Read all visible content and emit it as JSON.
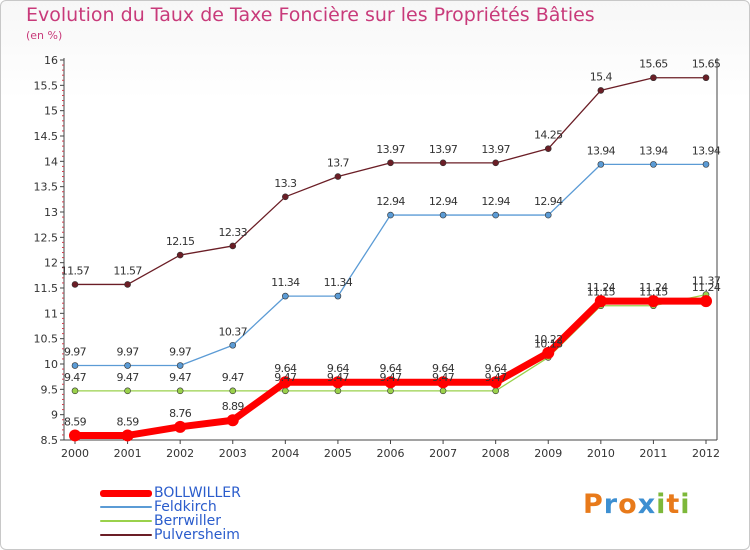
{
  "header": {
    "title": "Evolution du Taux de Taxe Foncière sur les Propriétés Bâties",
    "unit": "(en %)"
  },
  "logo": {
    "text": "Proxiti",
    "letters": [
      "P",
      "r",
      "o",
      "x",
      "i",
      "t",
      "i"
    ],
    "colors": [
      "#e87a1a",
      "#3d8fd1",
      "#e87a1a",
      "#3d8fd1",
      "#7db83a",
      "#e87a1a",
      "#7db83a"
    ]
  },
  "chart_data": {
    "type": "line",
    "x": [
      "2000",
      "2001",
      "2002",
      "2003",
      "2004",
      "2005",
      "2006",
      "2007",
      "2008",
      "2009",
      "2010",
      "2011",
      "2012"
    ],
    "ylim": [
      8.5,
      16
    ],
    "yticks": [
      "8.5",
      "9",
      "9.5",
      "10",
      "10.5",
      "11",
      "11.5",
      "12",
      "12.5",
      "13",
      "13.5",
      "14",
      "14.5",
      "15",
      "15.5",
      "16"
    ],
    "grid": false,
    "legend_position": "bottom-left",
    "series": [
      {
        "name": "Pulversheim",
        "color": "#6b1e26",
        "values": [
          11.57,
          11.57,
          12.15,
          12.33,
          13.3,
          13.7,
          13.97,
          13.97,
          13.97,
          14.25,
          15.4,
          15.65,
          15.65
        ],
        "labels": [
          "11.57",
          "11.57",
          "12.15",
          "12.33",
          "13.3",
          "13.7",
          "13.97",
          "13.97",
          "13.97",
          "14.25",
          "15.4",
          "15.65",
          "15.65"
        ]
      },
      {
        "name": "Feldkirch",
        "color": "#5b9bd5",
        "values": [
          9.97,
          9.97,
          9.97,
          10.37,
          11.34,
          11.34,
          12.94,
          12.94,
          12.94,
          12.94,
          13.94,
          13.94,
          13.94
        ],
        "labels": [
          "9.97",
          "9.97",
          "9.97",
          "10.37",
          "11.34",
          "11.34",
          "12.94",
          "12.94",
          "12.94",
          "12.94",
          "13.94",
          "13.94",
          "13.94"
        ]
      },
      {
        "name": "Berrwiller",
        "color": "#9ad14b",
        "values": [
          9.47,
          9.47,
          9.47,
          9.47,
          9.47,
          9.47,
          9.47,
          9.47,
          9.47,
          10.13,
          11.15,
          11.15,
          11.37
        ],
        "labels": [
          "9.47",
          "9.47",
          "9.47",
          "9.47",
          "9.47",
          "9.47",
          "9.47",
          "9.47",
          "9.47",
          "10.13",
          "11.15",
          "11.15",
          "11.37"
        ]
      },
      {
        "name": "BOLLWILLER",
        "color": "#ff0000",
        "values": [
          8.59,
          8.59,
          8.76,
          8.89,
          9.64,
          9.64,
          9.64,
          9.64,
          9.64,
          10.22,
          11.24,
          11.24,
          11.24
        ],
        "labels": [
          "8.59",
          "8.59",
          "8.76",
          "8.89",
          "9.64",
          "9.64",
          "9.64",
          "9.64",
          "9.64",
          "10.22",
          "11.24",
          "11.24",
          "11.24"
        ]
      }
    ],
    "legend_order": [
      "BOLLWILLER",
      "Feldkirch",
      "Berrwiller",
      "Pulversheim"
    ]
  }
}
